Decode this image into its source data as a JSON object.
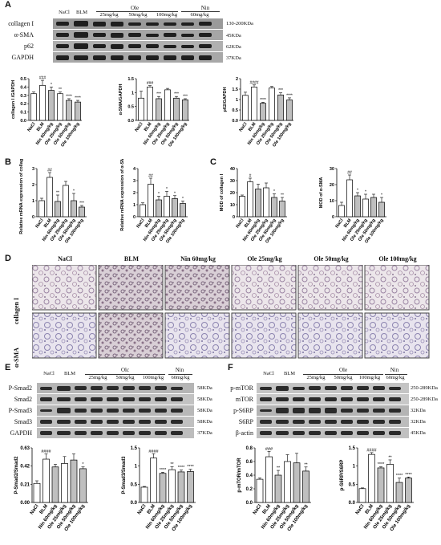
{
  "panels": {
    "A": "A",
    "B": "B",
    "C": "C",
    "D": "D",
    "E": "E",
    "F": "F"
  },
  "blotA": {
    "lanes": [
      "NaCl",
      "BLM"
    ],
    "group_ole": "Ole",
    "group_nin": "Nin",
    "doses": [
      "25mg/kg",
      "50mg/kg",
      "100mg/kg",
      "60mg/kg"
    ],
    "rows": [
      {
        "label": "collagen I",
        "kda": "130-200KDa"
      },
      {
        "label": "α-SMA",
        "kda": "45KDa"
      },
      {
        "label": "p62",
        "kda": "62KDa"
      },
      {
        "label": "GAPDH",
        "kda": "37KDa"
      }
    ]
  },
  "blotE": {
    "lanes": [
      "NaCl",
      "BLM"
    ],
    "group_ole": "Olc",
    "group_nin": "Nin",
    "doses": [
      "25mg/kg",
      "50mg/kg",
      "100mg/kg",
      "60mg/kg"
    ],
    "rows": [
      {
        "label": "P-Smad2",
        "kda": "58KDa"
      },
      {
        "label": "Smad2",
        "kda": "58KDa"
      },
      {
        "label": "P-Smad3",
        "kda": "58KDa"
      },
      {
        "label": "Smad3",
        "kda": "58KDa"
      },
      {
        "label": "GAPDH",
        "kda": "37KDa"
      }
    ]
  },
  "blotF": {
    "lanes": [
      "NaCl",
      "BLM"
    ],
    "group_ole": "Ole",
    "group_nin": "Nin",
    "doses": [
      "25mg/kg",
      "50mg/kg",
      "100mg/kg",
      "60mg/kg"
    ],
    "rows": [
      {
        "label": "p-mTOR",
        "kda": "250-289KDa"
      },
      {
        "label": "mTOR",
        "kda": "250-289KDa"
      },
      {
        "label": "p-S6RP",
        "kda": "32KDa"
      },
      {
        "label": "S6RP",
        "kda": "32KDa"
      },
      {
        "label": "β-actin",
        "kda": "45KDa"
      }
    ]
  },
  "ihc": {
    "columns": [
      "NaCl",
      "BLM",
      "Nin 60mg/kg",
      "Ole 25mg/kg",
      "Ole 50mg/kg",
      "Ole 100mg/kg"
    ],
    "rows": [
      "collagen I",
      "α-SMA"
    ]
  },
  "chart_data": [
    {
      "id": "A1",
      "type": "bar",
      "ylabel": "collagen I /GAPDH",
      "ylim": [
        0,
        0.5
      ],
      "yticks": [
        0,
        0.1,
        0.2,
        0.3,
        0.4,
        0.5
      ],
      "categories": [
        "NaCl",
        "BLM",
        "Nin 60mg/kg",
        "Ole 25mg/kg",
        "Ole 50mg/kg",
        "Ole 100mg/kg"
      ],
      "values": [
        0.32,
        0.42,
        0.36,
        0.32,
        0.24,
        0.22
      ],
      "errors": [
        0.02,
        0.06,
        0.04,
        0.02,
        0.02,
        0.02
      ],
      "fills": [
        "#ffffff",
        "#ffffff",
        "#bfbfbf",
        "#ffffff",
        "#bfbfbf",
        "#bfbfbf"
      ],
      "sig": [
        "",
        "###",
        "*",
        "**",
        "****",
        "****"
      ]
    },
    {
      "id": "A2",
      "type": "bar",
      "ylabel": "α-SMA/GAPDH",
      "ylim": [
        0,
        1.5
      ],
      "yticks": [
        0.0,
        0.5,
        1.0,
        1.5
      ],
      "categories": [
        "NaCl",
        "BLM",
        "Nin 60mg/kg",
        "Ole 25mg/kg",
        "Ole 50mg/kg",
        "Ole 100mg/kg"
      ],
      "values": [
        0.8,
        1.2,
        0.78,
        1.1,
        0.8,
        0.74
      ],
      "errors": [
        0.25,
        0.05,
        0.08,
        0.05,
        0.06,
        0.04
      ],
      "fills": [
        "#ffffff",
        "#ffffff",
        "#bfbfbf",
        "#ffffff",
        "#bfbfbf",
        "#bfbfbf"
      ],
      "sig": [
        "",
        "###",
        "***",
        "",
        "***",
        "***"
      ]
    },
    {
      "id": "A3",
      "type": "bar",
      "ylabel": "p62/GAPDH",
      "ylim": [
        0,
        2.0
      ],
      "yticks": [
        0.0,
        0.5,
        1.0,
        1.5,
        2.0
      ],
      "categories": [
        "NaCl",
        "BLM",
        "Nin 60mg/kg",
        "Ole 25mg/kg",
        "Ole 50mg/kg",
        "Ole 100mg/kg"
      ],
      "values": [
        1.2,
        1.6,
        0.82,
        1.55,
        1.22,
        0.98
      ],
      "errors": [
        0.15,
        0.1,
        0.05,
        0.08,
        0.1,
        0.1
      ],
      "fills": [
        "#ffffff",
        "#ffffff",
        "#bfbfbf",
        "#ffffff",
        "#bfbfbf",
        "#bfbfbf"
      ],
      "sig": [
        "",
        "####",
        "****",
        "",
        "***",
        "****"
      ]
    },
    {
      "id": "B1",
      "type": "bar",
      "ylabel": "Relative mRNA expression of collagen I",
      "ylim": [
        0,
        3
      ],
      "yticks": [
        0,
        1,
        2,
        3
      ],
      "categories": [
        "NaCl",
        "BLM",
        "Nin 60mg/kg",
        "Ole 25mg/kg",
        "Ole 50mg/kg",
        "Ole 100mg/kg"
      ],
      "values": [
        1.0,
        2.45,
        0.95,
        1.95,
        1.0,
        0.6
      ],
      "errors": [
        0.15,
        0.3,
        0.4,
        0.25,
        0.45,
        0.1
      ],
      "fills": [
        "#ffffff",
        "#ffffff",
        "#bfbfbf",
        "#ffffff",
        "#bfbfbf",
        "#bfbfbf"
      ],
      "sig": [
        "",
        "##",
        "**",
        "",
        "*",
        "***"
      ]
    },
    {
      "id": "B2",
      "type": "bar",
      "ylabel": "Relative mRNA expression of α-SMA",
      "ylim": [
        0,
        4
      ],
      "yticks": [
        0,
        1,
        2,
        3,
        4
      ],
      "categories": [
        "NaCl",
        "BLM",
        "Nin 60mg/kg",
        "Ole 25mg/kg",
        "Ole 50mg/kg",
        "Ole 100mg/kg"
      ],
      "values": [
        1.0,
        2.7,
        1.4,
        1.7,
        1.5,
        1.1
      ],
      "errors": [
        0.15,
        0.5,
        0.3,
        0.4,
        0.25,
        0.2
      ],
      "fills": [
        "#ffffff",
        "#ffffff",
        "#bfbfbf",
        "#ffffff",
        "#bfbfbf",
        "#bfbfbf"
      ],
      "sig": [
        "",
        "##",
        "*",
        "*",
        "*",
        "*"
      ]
    },
    {
      "id": "C1",
      "type": "bar",
      "ylabel": "MOD of collagen I",
      "ylim": [
        0,
        40
      ],
      "yticks": [
        0,
        10,
        20,
        30,
        40
      ],
      "categories": [
        "NaCl",
        "BLM",
        "Nin 60mg/kg",
        "Ole 25mg/kg",
        "Ole 50mg/kg",
        "Ole 100mg/kg"
      ],
      "values": [
        17,
        29,
        23,
        24,
        16,
        13
      ],
      "errors": [
        1,
        3,
        4,
        4,
        3,
        3
      ],
      "fills": [
        "#ffffff",
        "#ffffff",
        "#bfbfbf",
        "#ffffff",
        "#bfbfbf",
        "#bfbfbf"
      ],
      "sig": [
        "",
        "#",
        "",
        "",
        "*",
        "**"
      ]
    },
    {
      "id": "C2",
      "type": "bar",
      "ylabel": "MOD of α-SMA",
      "ylim": [
        0,
        30
      ],
      "yticks": [
        0,
        10,
        20,
        30
      ],
      "categories": [
        "NaCl",
        "BLM",
        "Nin 60mg/kg",
        "Ole 25mg/kg",
        "Ole 50mg/kg",
        "Ole 100mg/kg"
      ],
      "values": [
        7,
        23,
        13,
        11,
        12,
        9
      ],
      "errors": [
        2,
        3,
        2,
        3,
        2,
        3
      ],
      "fills": [
        "#ffffff",
        "#ffffff",
        "#bfbfbf",
        "#ffffff",
        "#bfbfbf",
        "#bfbfbf"
      ],
      "sig": [
        "",
        "##",
        "*",
        "*",
        "",
        "*"
      ]
    },
    {
      "id": "E1",
      "type": "bar",
      "ylabel": "P-Smad2/Smad2",
      "ylim": [
        0,
        0.63
      ],
      "yticks": [
        0.0,
        0.21,
        0.42,
        0.63
      ],
      "categories": [
        "NaCl",
        "BLM",
        "Nin 60mg/kg",
        "Ole 25mg/kg",
        "Ole 50mg/kg",
        "Ole 100mg/kg"
      ],
      "values": [
        0.22,
        0.5,
        0.41,
        0.45,
        0.49,
        0.39
      ],
      "errors": [
        0.03,
        0.06,
        0.03,
        0.08,
        0.07,
        0.02
      ],
      "fills": [
        "#ffffff",
        "#ffffff",
        "#bfbfbf",
        "#ffffff",
        "#bfbfbf",
        "#bfbfbf"
      ],
      "sig": [
        "",
        "####",
        "",
        "",
        "",
        "*"
      ]
    },
    {
      "id": "E2",
      "type": "bar",
      "ylabel": "P-Smad3/Smad3",
      "ylim": [
        0,
        1.5
      ],
      "yticks": [
        0.0,
        0.5,
        1.0,
        1.5
      ],
      "categories": [
        "NaCl",
        "BLM",
        "Nin 60mg/kg",
        "Ole 25mg/kg",
        "Ole 50mg/kg",
        "Ole 100mg/kg"
      ],
      "values": [
        0.42,
        1.22,
        0.8,
        0.9,
        0.84,
        0.85
      ],
      "errors": [
        0.02,
        0.12,
        0.03,
        0.08,
        0.05,
        0.06
      ],
      "fills": [
        "#ffffff",
        "#ffffff",
        "#bfbfbf",
        "#ffffff",
        "#bfbfbf",
        "#bfbfbf"
      ],
      "sig": [
        "",
        "####",
        "****",
        "**",
        "****",
        "****"
      ]
    },
    {
      "id": "F1",
      "type": "bar",
      "ylabel": "p-mTOR/mTOR",
      "ylim": [
        0,
        0.8
      ],
      "yticks": [
        0.0,
        0.2,
        0.4,
        0.6,
        0.8
      ],
      "categories": [
        "NaCl",
        "BLM",
        "Nin 60mg/kg",
        "Ole 25mg/kg",
        "Ole 50mg/kg",
        "Ole 100mg/kg"
      ],
      "values": [
        0.34,
        0.67,
        0.4,
        0.6,
        0.58,
        0.46
      ],
      "errors": [
        0.02,
        0.08,
        0.07,
        0.1,
        0.14,
        0.06
      ],
      "fills": [
        "#ffffff",
        "#ffffff",
        "#bfbfbf",
        "#ffffff",
        "#bfbfbf",
        "#bfbfbf"
      ],
      "sig": [
        "",
        "###",
        "**",
        "",
        "",
        "**"
      ]
    },
    {
      "id": "F2",
      "type": "bar",
      "ylabel": "p-S6RP/S6RP",
      "ylim": [
        0,
        1.5
      ],
      "yticks": [
        0.0,
        0.5,
        1.0,
        1.5
      ],
      "categories": [
        "NaCl",
        "BLM",
        "Nin 60mg/kg",
        "Ole 25mg/kg",
        "Ole 50mg/kg",
        "Ole 100mg/kg"
      ],
      "values": [
        0.38,
        1.32,
        0.95,
        1.05,
        0.55,
        0.67
      ],
      "errors": [
        0.02,
        0.05,
        0.03,
        0.12,
        0.12,
        0.03
      ],
      "fills": [
        "#ffffff",
        "#ffffff",
        "#bfbfbf",
        "#ffffff",
        "#bfbfbf",
        "#bfbfbf"
      ],
      "sig": [
        "",
        "####",
        "****",
        "**",
        "****",
        "****"
      ]
    }
  ]
}
